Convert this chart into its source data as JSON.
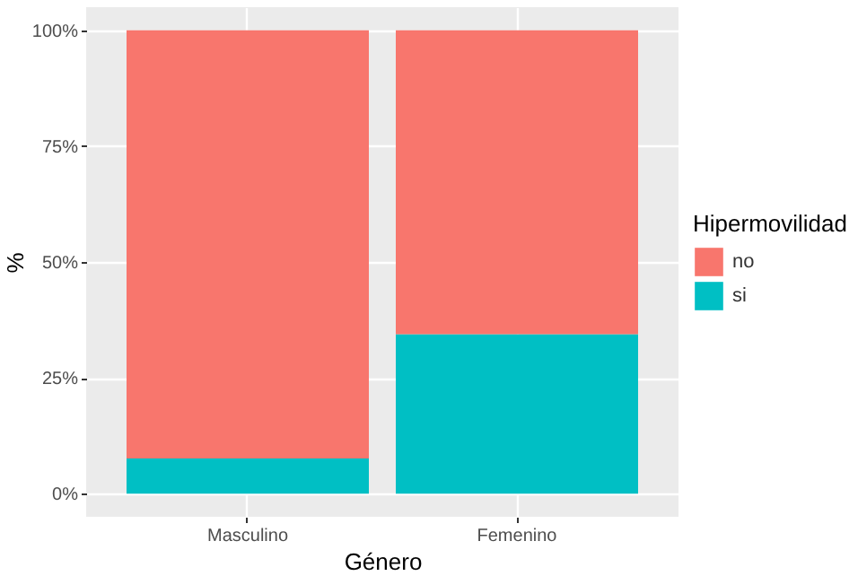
{
  "chart_data": {
    "type": "bar",
    "stacked": true,
    "xlabel": "Género",
    "ylabel": "%",
    "legend_title": "Hipermovilidad",
    "categories": [
      "Masculino",
      "Femenino"
    ],
    "series": [
      {
        "name": "si",
        "color": "#00bfc4",
        "values": [
          7.6,
          34.4
        ]
      },
      {
        "name": "no",
        "color": "#f8766d",
        "values": [
          92.4,
          65.6
        ]
      }
    ],
    "ylim": [
      -5,
      105
    ],
    "yticks": [
      {
        "value": 0,
        "label": "0%"
      },
      {
        "value": 25,
        "label": "25%"
      },
      {
        "value": 50,
        "label": "50%"
      },
      {
        "value": 75,
        "label": "75%"
      },
      {
        "value": 100,
        "label": "100%"
      }
    ],
    "grid": true,
    "legend": "right"
  }
}
